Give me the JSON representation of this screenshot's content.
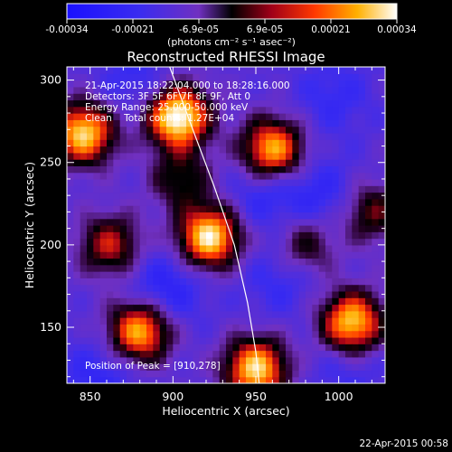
{
  "chart_data": {
    "type": "heatmap",
    "title": "Reconstructed RHESSI Image",
    "xlabel": "Heliocentric X (arcsec)",
    "ylabel": "Heliocentric Y (arcsec)",
    "xlim": [
      836,
      1028
    ],
    "ylim": [
      116,
      308
    ],
    "x_ticks": [
      850,
      900,
      950,
      1000
    ],
    "y_ticks": [
      150,
      200,
      250,
      300
    ],
    "colorbar": {
      "ticks": [
        "-0.00034",
        "-0.00021",
        "-6.9e-05",
        "6.9e-05",
        "0.00021",
        "0.00034"
      ],
      "range": [
        -0.00034,
        0.00034
      ],
      "unit_label": "(photons cm⁻² s⁻¹ asec⁻²)"
    },
    "info_lines": [
      "21-Apr-2015 18:22:04.000 to 18:28:16.000",
      "Detectors: 3F 5F 6F 7F 8F 9F, Att 0",
      "Energy Range: 25.000-50.000 keV",
      "Clean    Total counts: 1.27E+04"
    ],
    "peak_label": "Position of Peak = [910,278]",
    "footer_date": "22-Apr-2015 00:58",
    "limb": [
      [
        898,
        308
      ],
      [
        912,
        270
      ],
      [
        925,
        235
      ],
      [
        937,
        200
      ],
      [
        945,
        165
      ],
      [
        950,
        135
      ],
      [
        952,
        116
      ]
    ],
    "sources": [
      {
        "x": 903,
        "y": 278,
        "amp": 1.0
      },
      {
        "x": 846,
        "y": 268,
        "amp": 0.85
      },
      {
        "x": 960,
        "y": 258,
        "amp": 0.8
      },
      {
        "x": 922,
        "y": 205,
        "amp": 0.9
      },
      {
        "x": 1008,
        "y": 153,
        "amp": 0.85
      },
      {
        "x": 880,
        "y": 148,
        "amp": 0.8
      },
      {
        "x": 950,
        "y": 125,
        "amp": 0.85
      },
      {
        "x": 862,
        "y": 200,
        "amp": 0.5
      },
      {
        "x": 1020,
        "y": 220,
        "amp": 0.4
      },
      {
        "x": 980,
        "y": 200,
        "amp": 0.35
      },
      {
        "x": 905,
        "y": 240,
        "amp": 0.35
      }
    ],
    "lows": [
      {
        "x": 955,
        "y": 232,
        "amp": -0.6
      },
      {
        "x": 878,
        "y": 300,
        "amp": -0.5
      },
      {
        "x": 895,
        "y": 173,
        "amp": -0.8
      },
      {
        "x": 990,
        "y": 230,
        "amp": -0.6
      },
      {
        "x": 965,
        "y": 180,
        "amp": -0.5
      },
      {
        "x": 855,
        "y": 120,
        "amp": -0.6
      },
      {
        "x": 997,
        "y": 290,
        "amp": -0.5
      },
      {
        "x": 1005,
        "y": 125,
        "amp": -0.4
      }
    ],
    "colors": {
      "axes": "#ffffff",
      "limb": "#ffffff"
    }
  }
}
